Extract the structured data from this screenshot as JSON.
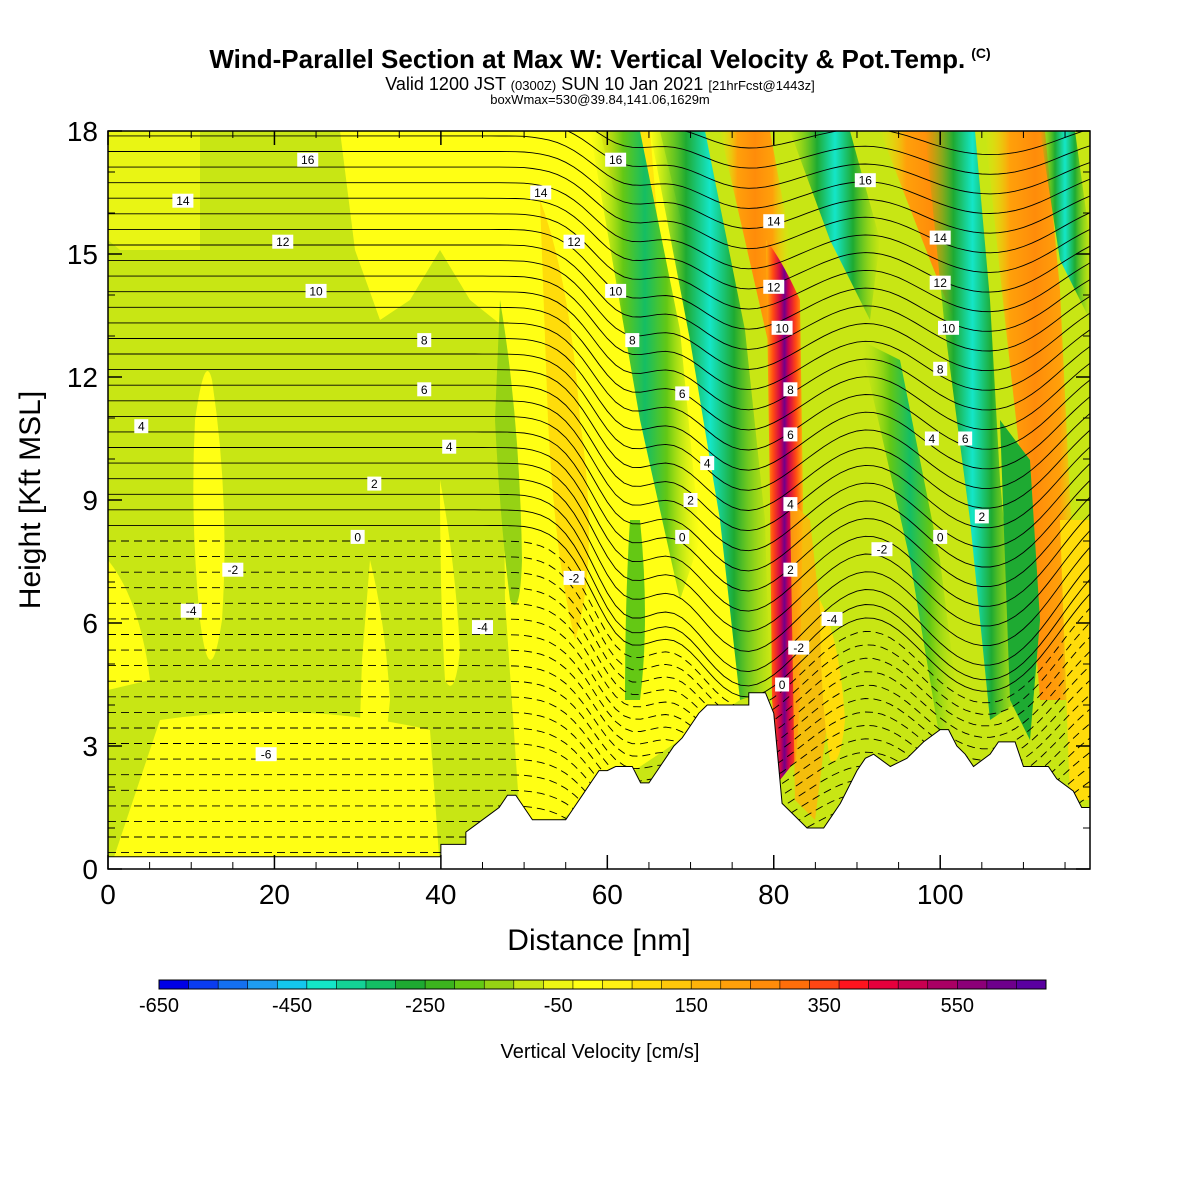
{
  "header": {
    "title": "Wind-Parallel Section at Max W: Vertical Velocity & Pot.Temp.",
    "title_mark": "(C)",
    "valid_prefix": "Valid 1200 JST",
    "valid_zulu": "(0300Z)",
    "valid_date": "SUN 10 Jan 2021",
    "valid_fcst": "[21hrFcst@1443z]",
    "box_info": "boxWmax=530@39.84,141.06,1629m"
  },
  "chart_data": {
    "type": "heatmap",
    "xlabel": "Distance [nm]",
    "ylabel": "Height [Kft MSL]",
    "xlim": [
      0,
      118
    ],
    "ylim": [
      0,
      18
    ],
    "x_ticks": [
      0,
      20,
      40,
      60,
      80,
      100
    ],
    "y_ticks": [
      0,
      3,
      6,
      9,
      12,
      15,
      18
    ],
    "colorbar": {
      "label": "Vertical Velocity [cm/s]",
      "tick_labels": [
        "-650",
        "-450",
        "-250",
        "-50",
        "150",
        "350",
        "550"
      ],
      "colors": [
        "#0000e6",
        "#0a3cf0",
        "#1470f0",
        "#1e9cf0",
        "#14c8ee",
        "#14e6c8",
        "#14d296",
        "#14be64",
        "#1eaa32",
        "#3cb41e",
        "#64c814",
        "#96d214",
        "#c8e614",
        "#eef514",
        "#ffff14",
        "#fff014",
        "#ffdc0a",
        "#ffc80a",
        "#ffb40a",
        "#ffa00a",
        "#ff8c0a",
        "#ff6e0a",
        "#ff4614",
        "#ff141e",
        "#e6003c",
        "#c80050",
        "#aa0064",
        "#8c0078",
        "#6e008c",
        "#5a00a0"
      ]
    },
    "contour_field": "Potential Temperature",
    "contour_levels": [
      -6,
      -4,
      -2,
      0,
      2,
      4,
      6,
      8,
      10,
      12,
      14,
      16
    ],
    "contour_labels": [
      {
        "x": 24,
        "y": 17.3,
        "text": "16"
      },
      {
        "x": 9,
        "y": 16.3,
        "text": "14"
      },
      {
        "x": 21,
        "y": 15.3,
        "text": "12"
      },
      {
        "x": 25,
        "y": 14.1,
        "text": "10"
      },
      {
        "x": 38,
        "y": 12.9,
        "text": "8"
      },
      {
        "x": 38,
        "y": 11.7,
        "text": "6"
      },
      {
        "x": 4,
        "y": 10.8,
        "text": "4"
      },
      {
        "x": 41,
        "y": 10.3,
        "text": "4"
      },
      {
        "x": 32,
        "y": 9.4,
        "text": "2"
      },
      {
        "x": 30,
        "y": 8.1,
        "text": "0"
      },
      {
        "x": 15,
        "y": 7.3,
        "text": "-2"
      },
      {
        "x": 10,
        "y": 6.3,
        "text": "-4"
      },
      {
        "x": 45,
        "y": 5.9,
        "text": "-4"
      },
      {
        "x": 19,
        "y": 2.8,
        "text": "-6"
      },
      {
        "x": 56,
        "y": 7.1,
        "text": "-2"
      },
      {
        "x": 52,
        "y": 16.5,
        "text": "14"
      },
      {
        "x": 61,
        "y": 17.3,
        "text": "16"
      },
      {
        "x": 56,
        "y": 15.3,
        "text": "12"
      },
      {
        "x": 61,
        "y": 14.1,
        "text": "10"
      },
      {
        "x": 63,
        "y": 12.9,
        "text": "8"
      },
      {
        "x": 69,
        "y": 11.6,
        "text": "6"
      },
      {
        "x": 72,
        "y": 9.9,
        "text": "4"
      },
      {
        "x": 70,
        "y": 9.0,
        "text": "2"
      },
      {
        "x": 69,
        "y": 8.1,
        "text": "0"
      },
      {
        "x": 80,
        "y": 15.8,
        "text": "14"
      },
      {
        "x": 80,
        "y": 14.2,
        "text": "12"
      },
      {
        "x": 81,
        "y": 13.2,
        "text": "10"
      },
      {
        "x": 82,
        "y": 11.7,
        "text": "8"
      },
      {
        "x": 82,
        "y": 10.6,
        "text": "6"
      },
      {
        "x": 82,
        "y": 8.9,
        "text": "4"
      },
      {
        "x": 82,
        "y": 7.3,
        "text": "2"
      },
      {
        "x": 83,
        "y": 5.4,
        "text": "-2"
      },
      {
        "x": 81,
        "y": 4.5,
        "text": "0"
      },
      {
        "x": 87,
        "y": 6.1,
        "text": "-4"
      },
      {
        "x": 91,
        "y": 16.8,
        "text": "16"
      },
      {
        "x": 100,
        "y": 15.4,
        "text": "14"
      },
      {
        "x": 100,
        "y": 14.3,
        "text": "12"
      },
      {
        "x": 101,
        "y": 13.2,
        "text": "10"
      },
      {
        "x": 100,
        "y": 12.2,
        "text": "8"
      },
      {
        "x": 99,
        "y": 10.5,
        "text": "4"
      },
      {
        "x": 103,
        "y": 10.5,
        "text": "6"
      },
      {
        "x": 105,
        "y": 8.6,
        "text": "2"
      },
      {
        "x": 100,
        "y": 8.1,
        "text": "0"
      },
      {
        "x": 93,
        "y": 7.8,
        "text": "-2"
      }
    ],
    "terrain": [
      [
        0,
        0.3
      ],
      [
        40,
        0.3
      ],
      [
        40,
        0.6
      ],
      [
        43,
        0.6
      ],
      [
        43,
        0.9
      ],
      [
        45,
        1.2
      ],
      [
        47,
        1.5
      ],
      [
        48,
        1.8
      ],
      [
        49,
        1.8
      ],
      [
        50,
        1.5
      ],
      [
        51,
        1.2
      ],
      [
        55,
        1.2
      ],
      [
        56,
        1.5
      ],
      [
        57,
        1.8
      ],
      [
        58,
        2.1
      ],
      [
        59,
        2.4
      ],
      [
        60,
        2.4
      ],
      [
        61,
        2.5
      ],
      [
        63,
        2.5
      ],
      [
        64,
        2.1
      ],
      [
        65,
        2.1
      ],
      [
        66,
        2.4
      ],
      [
        67,
        2.7
      ],
      [
        68,
        3.0
      ],
      [
        69,
        3.2
      ],
      [
        70,
        3.5
      ],
      [
        71,
        3.8
      ],
      [
        72,
        4.0
      ],
      [
        77,
        4.0
      ],
      [
        77,
        4.3
      ],
      [
        79,
        4.3
      ],
      [
        80,
        3.8
      ],
      [
        81,
        1.6
      ],
      [
        84,
        1.0
      ],
      [
        86,
        1.0
      ],
      [
        87,
        1.3
      ],
      [
        88,
        1.6
      ],
      [
        89,
        2.0
      ],
      [
        90,
        2.4
      ],
      [
        91,
        2.7
      ],
      [
        92,
        2.8
      ],
      [
        94,
        2.5
      ],
      [
        96,
        2.7
      ],
      [
        98,
        3.1
      ],
      [
        100,
        3.4
      ],
      [
        101,
        3.4
      ],
      [
        102,
        3.0
      ],
      [
        103,
        2.8
      ],
      [
        104,
        2.5
      ],
      [
        106,
        2.8
      ],
      [
        107,
        3.1
      ],
      [
        109,
        3.1
      ],
      [
        110,
        2.5
      ],
      [
        113,
        2.5
      ],
      [
        114,
        2.2
      ],
      [
        116,
        1.9
      ],
      [
        117,
        1.5
      ],
      [
        118,
        1.5
      ]
    ]
  }
}
